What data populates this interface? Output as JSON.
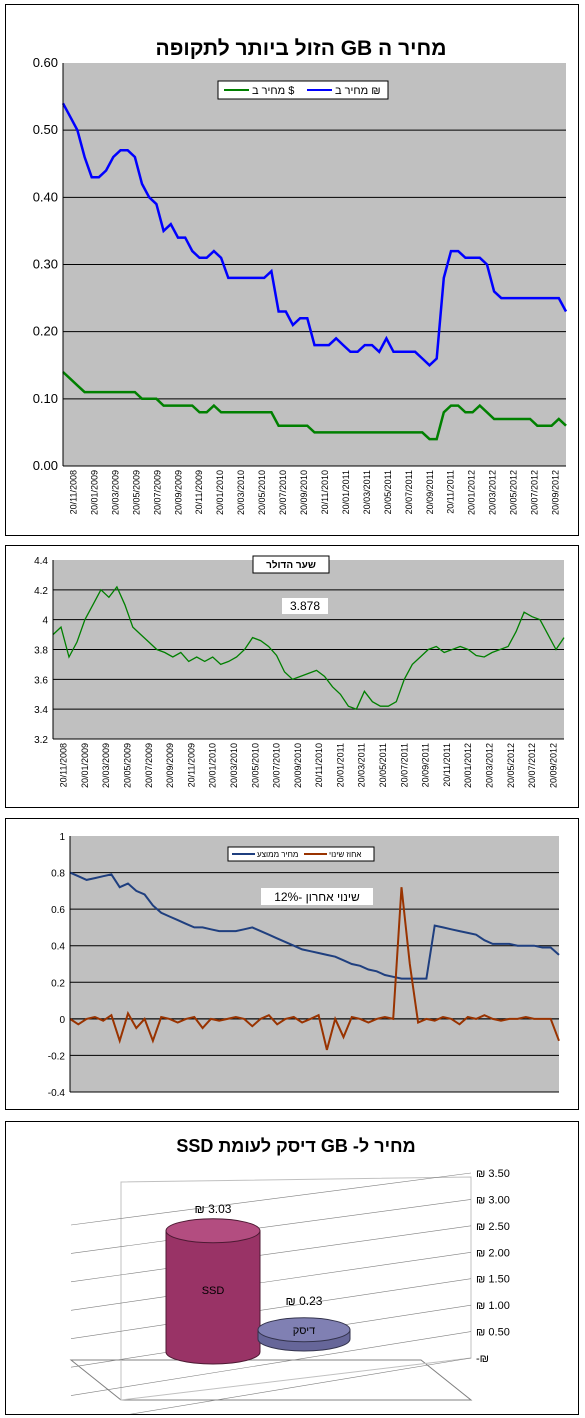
{
  "charts": [
    {
      "type": "line",
      "title": "מחיר ה GB הזול ביותר לתקופה",
      "ylim": [
        0,
        0.6
      ],
      "yticks": [
        "0.00",
        "0.10",
        "0.20",
        "0.30",
        "0.40",
        "0.50",
        "0.60"
      ],
      "x_labels": [
        "20/11/2008",
        "20/01/2009",
        "20/03/2009",
        "20/05/2009",
        "20/07/2009",
        "20/09/2009",
        "20/11/2009",
        "20/01/2010",
        "20/03/2010",
        "20/05/2010",
        "20/07/2010",
        "20/09/2010",
        "20/11/2010",
        "20/01/2011",
        "20/03/2011",
        "20/05/2011",
        "20/07/2011",
        "20/09/2011",
        "20/11/2011",
        "20/01/2012",
        "20/03/2012",
        "20/05/2012",
        "20/07/2012",
        "20/09/2012"
      ],
      "legend": [
        "מחיר ב $",
        "מחיר ב ₪"
      ],
      "series": [
        {
          "name": "מחיר ב ₪",
          "color": "#0000ff",
          "values": [
            0.54,
            0.52,
            0.5,
            0.46,
            0.43,
            0.43,
            0.44,
            0.46,
            0.47,
            0.47,
            0.46,
            0.42,
            0.4,
            0.39,
            0.35,
            0.36,
            0.34,
            0.34,
            0.32,
            0.31,
            0.31,
            0.32,
            0.31,
            0.28,
            0.28,
            0.28,
            0.28,
            0.28,
            0.28,
            0.29,
            0.23,
            0.23,
            0.21,
            0.22,
            0.22,
            0.18,
            0.18,
            0.18,
            0.19,
            0.18,
            0.17,
            0.17,
            0.18,
            0.18,
            0.17,
            0.19,
            0.17,
            0.17,
            0.17,
            0.17,
            0.16,
            0.15,
            0.16,
            0.28,
            0.32,
            0.32,
            0.31,
            0.31,
            0.31,
            0.3,
            0.26,
            0.25,
            0.25,
            0.25,
            0.25,
            0.25,
            0.25,
            0.25,
            0.25,
            0.25,
            0.23
          ]
        },
        {
          "name": "מחיר ב $",
          "color": "#008000",
          "values": [
            0.14,
            0.13,
            0.12,
            0.11,
            0.11,
            0.11,
            0.11,
            0.11,
            0.11,
            0.11,
            0.11,
            0.1,
            0.1,
            0.1,
            0.09,
            0.09,
            0.09,
            0.09,
            0.09,
            0.08,
            0.08,
            0.09,
            0.08,
            0.08,
            0.08,
            0.08,
            0.08,
            0.08,
            0.08,
            0.08,
            0.06,
            0.06,
            0.06,
            0.06,
            0.06,
            0.05,
            0.05,
            0.05,
            0.05,
            0.05,
            0.05,
            0.05,
            0.05,
            0.05,
            0.05,
            0.05,
            0.05,
            0.05,
            0.05,
            0.05,
            0.05,
            0.04,
            0.04,
            0.08,
            0.09,
            0.09,
            0.08,
            0.08,
            0.09,
            0.08,
            0.07,
            0.07,
            0.07,
            0.07,
            0.07,
            0.07,
            0.06,
            0.06,
            0.06,
            0.07,
            0.06
          ]
        }
      ]
    },
    {
      "type": "line",
      "title": "שער הדולר",
      "annotation": "3.878",
      "ylim": [
        3.2,
        4.4
      ],
      "yticks": [
        "3.2",
        "3.4",
        "3.6",
        "3.8",
        "4",
        "4.2",
        "4.4"
      ],
      "x_labels": [
        "20/11/2008",
        "20/01/2009",
        "20/03/2009",
        "20/05/2009",
        "20/07/2009",
        "20/09/2009",
        "20/11/2009",
        "20/01/2010",
        "20/03/2010",
        "20/05/2010",
        "20/07/2010",
        "20/09/2010",
        "20/11/2010",
        "20/01/2011",
        "20/03/2011",
        "20/05/2011",
        "20/07/2011",
        "20/09/2011",
        "20/11/2011",
        "20/01/2012",
        "20/03/2012",
        "20/05/2012",
        "20/07/2012",
        "20/09/2012"
      ],
      "series": [
        {
          "name": "שער הדולר",
          "color": "#008000",
          "values": [
            3.9,
            3.95,
            3.75,
            3.85,
            4.0,
            4.1,
            4.2,
            4.15,
            4.22,
            4.1,
            3.95,
            3.9,
            3.85,
            3.8,
            3.78,
            3.75,
            3.78,
            3.72,
            3.75,
            3.72,
            3.75,
            3.7,
            3.72,
            3.75,
            3.8,
            3.88,
            3.86,
            3.82,
            3.76,
            3.65,
            3.6,
            3.62,
            3.64,
            3.66,
            3.62,
            3.55,
            3.5,
            3.42,
            3.4,
            3.52,
            3.45,
            3.42,
            3.42,
            3.45,
            3.6,
            3.7,
            3.75,
            3.8,
            3.82,
            3.78,
            3.8,
            3.82,
            3.8,
            3.76,
            3.75,
            3.78,
            3.8,
            3.82,
            3.92,
            4.05,
            4.02,
            4.0,
            3.9,
            3.8,
            3.88
          ]
        }
      ]
    },
    {
      "type": "line",
      "annotation": "שינוי אחרון  -12%",
      "ylim": [
        -0.4,
        1
      ],
      "yticks": [
        "-0.4",
        "-0.2",
        "0",
        "0.2",
        "0.4",
        "0.6",
        "0.8",
        "1"
      ],
      "legend": [
        "מחיר ממוצע",
        "אחוז שינוי"
      ],
      "series": [
        {
          "name": "מחיר ממוצע",
          "color": "#1f3f7f",
          "values": [
            0.8,
            0.78,
            0.76,
            0.77,
            0.78,
            0.79,
            0.72,
            0.74,
            0.7,
            0.68,
            0.62,
            0.58,
            0.56,
            0.54,
            0.52,
            0.5,
            0.5,
            0.49,
            0.48,
            0.48,
            0.48,
            0.49,
            0.5,
            0.48,
            0.46,
            0.44,
            0.42,
            0.4,
            0.38,
            0.37,
            0.36,
            0.35,
            0.34,
            0.32,
            0.3,
            0.29,
            0.27,
            0.26,
            0.24,
            0.23,
            0.22,
            0.22,
            0.22,
            0.22,
            0.51,
            0.5,
            0.49,
            0.48,
            0.47,
            0.46,
            0.43,
            0.41,
            0.41,
            0.41,
            0.4,
            0.4,
            0.4,
            0.39,
            0.39,
            0.35
          ]
        },
        {
          "name": "אחוז שינוי",
          "color": "#993300",
          "values": [
            0,
            -0.03,
            0,
            0.01,
            -0.01,
            0.02,
            -0.12,
            0.03,
            -0.05,
            0,
            -0.12,
            0.01,
            0,
            -0.02,
            0,
            0.01,
            -0.05,
            0,
            -0.01,
            0,
            0.01,
            0,
            -0.04,
            0,
            0.02,
            -0.03,
            0,
            0.01,
            -0.02,
            0,
            0.02,
            -0.17,
            0,
            -0.1,
            0.01,
            0,
            -0.02,
            0,
            0.01,
            0,
            0.72,
            0.3,
            -0.02,
            0,
            -0.01,
            0.01,
            0,
            -0.03,
            0.01,
            0,
            0.02,
            0,
            -0.01,
            0,
            0,
            0.01,
            0,
            0,
            0,
            -0.12
          ]
        }
      ]
    },
    {
      "type": "bar",
      "title": "מחיר ל- GB דיסק לעומת  SSD",
      "categories": [
        "SSD",
        "דיסק"
      ],
      "values": [
        3.03,
        0.23
      ],
      "value_labels": [
        "₪ 3.03",
        "₪ 0.23"
      ],
      "yticks": [
        "-₪",
        "₪ 0.50",
        "₪ 1.00",
        "₪ 1.50",
        "₪ 2.00",
        "₪ 2.50",
        "₪ 3.00",
        "₪ 3.50"
      ],
      "ylim": [
        0,
        3.5
      ],
      "colors": [
        "#993366",
        "#666699"
      ]
    }
  ]
}
